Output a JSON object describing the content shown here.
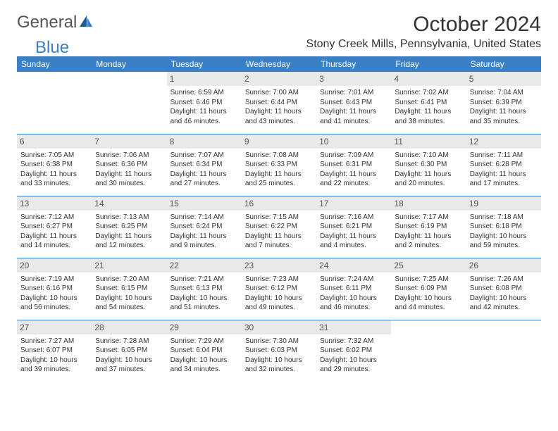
{
  "logo": {
    "text_general": "General",
    "text_blue": "Blue"
  },
  "header": {
    "month_title": "October 2024",
    "location": "Stony Creek Mills, Pennsylvania, United States"
  },
  "day_headers": [
    "Sunday",
    "Monday",
    "Tuesday",
    "Wednesday",
    "Thursday",
    "Friday",
    "Saturday"
  ],
  "colors": {
    "header_bg": "#3b7fc4",
    "header_text": "#ffffff",
    "daynum_bg": "#e9e9e9",
    "border": "#3b7fc4",
    "body_text": "#333333"
  },
  "weeks": [
    [
      {
        "day": "",
        "sunrise": "",
        "sunset": "",
        "daylight": ""
      },
      {
        "day": "",
        "sunrise": "",
        "sunset": "",
        "daylight": ""
      },
      {
        "day": "1",
        "sunrise": "Sunrise: 6:59 AM",
        "sunset": "Sunset: 6:46 PM",
        "daylight": "Daylight: 11 hours and 46 minutes."
      },
      {
        "day": "2",
        "sunrise": "Sunrise: 7:00 AM",
        "sunset": "Sunset: 6:44 PM",
        "daylight": "Daylight: 11 hours and 43 minutes."
      },
      {
        "day": "3",
        "sunrise": "Sunrise: 7:01 AM",
        "sunset": "Sunset: 6:43 PM",
        "daylight": "Daylight: 11 hours and 41 minutes."
      },
      {
        "day": "4",
        "sunrise": "Sunrise: 7:02 AM",
        "sunset": "Sunset: 6:41 PM",
        "daylight": "Daylight: 11 hours and 38 minutes."
      },
      {
        "day": "5",
        "sunrise": "Sunrise: 7:04 AM",
        "sunset": "Sunset: 6:39 PM",
        "daylight": "Daylight: 11 hours and 35 minutes."
      }
    ],
    [
      {
        "day": "6",
        "sunrise": "Sunrise: 7:05 AM",
        "sunset": "Sunset: 6:38 PM",
        "daylight": "Daylight: 11 hours and 33 minutes."
      },
      {
        "day": "7",
        "sunrise": "Sunrise: 7:06 AM",
        "sunset": "Sunset: 6:36 PM",
        "daylight": "Daylight: 11 hours and 30 minutes."
      },
      {
        "day": "8",
        "sunrise": "Sunrise: 7:07 AM",
        "sunset": "Sunset: 6:34 PM",
        "daylight": "Daylight: 11 hours and 27 minutes."
      },
      {
        "day": "9",
        "sunrise": "Sunrise: 7:08 AM",
        "sunset": "Sunset: 6:33 PM",
        "daylight": "Daylight: 11 hours and 25 minutes."
      },
      {
        "day": "10",
        "sunrise": "Sunrise: 7:09 AM",
        "sunset": "Sunset: 6:31 PM",
        "daylight": "Daylight: 11 hours and 22 minutes."
      },
      {
        "day": "11",
        "sunrise": "Sunrise: 7:10 AM",
        "sunset": "Sunset: 6:30 PM",
        "daylight": "Daylight: 11 hours and 20 minutes."
      },
      {
        "day": "12",
        "sunrise": "Sunrise: 7:11 AM",
        "sunset": "Sunset: 6:28 PM",
        "daylight": "Daylight: 11 hours and 17 minutes."
      }
    ],
    [
      {
        "day": "13",
        "sunrise": "Sunrise: 7:12 AM",
        "sunset": "Sunset: 6:27 PM",
        "daylight": "Daylight: 11 hours and 14 minutes."
      },
      {
        "day": "14",
        "sunrise": "Sunrise: 7:13 AM",
        "sunset": "Sunset: 6:25 PM",
        "daylight": "Daylight: 11 hours and 12 minutes."
      },
      {
        "day": "15",
        "sunrise": "Sunrise: 7:14 AM",
        "sunset": "Sunset: 6:24 PM",
        "daylight": "Daylight: 11 hours and 9 minutes."
      },
      {
        "day": "16",
        "sunrise": "Sunrise: 7:15 AM",
        "sunset": "Sunset: 6:22 PM",
        "daylight": "Daylight: 11 hours and 7 minutes."
      },
      {
        "day": "17",
        "sunrise": "Sunrise: 7:16 AM",
        "sunset": "Sunset: 6:21 PM",
        "daylight": "Daylight: 11 hours and 4 minutes."
      },
      {
        "day": "18",
        "sunrise": "Sunrise: 7:17 AM",
        "sunset": "Sunset: 6:19 PM",
        "daylight": "Daylight: 11 hours and 2 minutes."
      },
      {
        "day": "19",
        "sunrise": "Sunrise: 7:18 AM",
        "sunset": "Sunset: 6:18 PM",
        "daylight": "Daylight: 10 hours and 59 minutes."
      }
    ],
    [
      {
        "day": "20",
        "sunrise": "Sunrise: 7:19 AM",
        "sunset": "Sunset: 6:16 PM",
        "daylight": "Daylight: 10 hours and 56 minutes."
      },
      {
        "day": "21",
        "sunrise": "Sunrise: 7:20 AM",
        "sunset": "Sunset: 6:15 PM",
        "daylight": "Daylight: 10 hours and 54 minutes."
      },
      {
        "day": "22",
        "sunrise": "Sunrise: 7:21 AM",
        "sunset": "Sunset: 6:13 PM",
        "daylight": "Daylight: 10 hours and 51 minutes."
      },
      {
        "day": "23",
        "sunrise": "Sunrise: 7:23 AM",
        "sunset": "Sunset: 6:12 PM",
        "daylight": "Daylight: 10 hours and 49 minutes."
      },
      {
        "day": "24",
        "sunrise": "Sunrise: 7:24 AM",
        "sunset": "Sunset: 6:11 PM",
        "daylight": "Daylight: 10 hours and 46 minutes."
      },
      {
        "day": "25",
        "sunrise": "Sunrise: 7:25 AM",
        "sunset": "Sunset: 6:09 PM",
        "daylight": "Daylight: 10 hours and 44 minutes."
      },
      {
        "day": "26",
        "sunrise": "Sunrise: 7:26 AM",
        "sunset": "Sunset: 6:08 PM",
        "daylight": "Daylight: 10 hours and 42 minutes."
      }
    ],
    [
      {
        "day": "27",
        "sunrise": "Sunrise: 7:27 AM",
        "sunset": "Sunset: 6:07 PM",
        "daylight": "Daylight: 10 hours and 39 minutes."
      },
      {
        "day": "28",
        "sunrise": "Sunrise: 7:28 AM",
        "sunset": "Sunset: 6:05 PM",
        "daylight": "Daylight: 10 hours and 37 minutes."
      },
      {
        "day": "29",
        "sunrise": "Sunrise: 7:29 AM",
        "sunset": "Sunset: 6:04 PM",
        "daylight": "Daylight: 10 hours and 34 minutes."
      },
      {
        "day": "30",
        "sunrise": "Sunrise: 7:30 AM",
        "sunset": "Sunset: 6:03 PM",
        "daylight": "Daylight: 10 hours and 32 minutes."
      },
      {
        "day": "31",
        "sunrise": "Sunrise: 7:32 AM",
        "sunset": "Sunset: 6:02 PM",
        "daylight": "Daylight: 10 hours and 29 minutes."
      },
      {
        "day": "",
        "sunrise": "",
        "sunset": "",
        "daylight": ""
      },
      {
        "day": "",
        "sunrise": "",
        "sunset": "",
        "daylight": ""
      }
    ]
  ]
}
